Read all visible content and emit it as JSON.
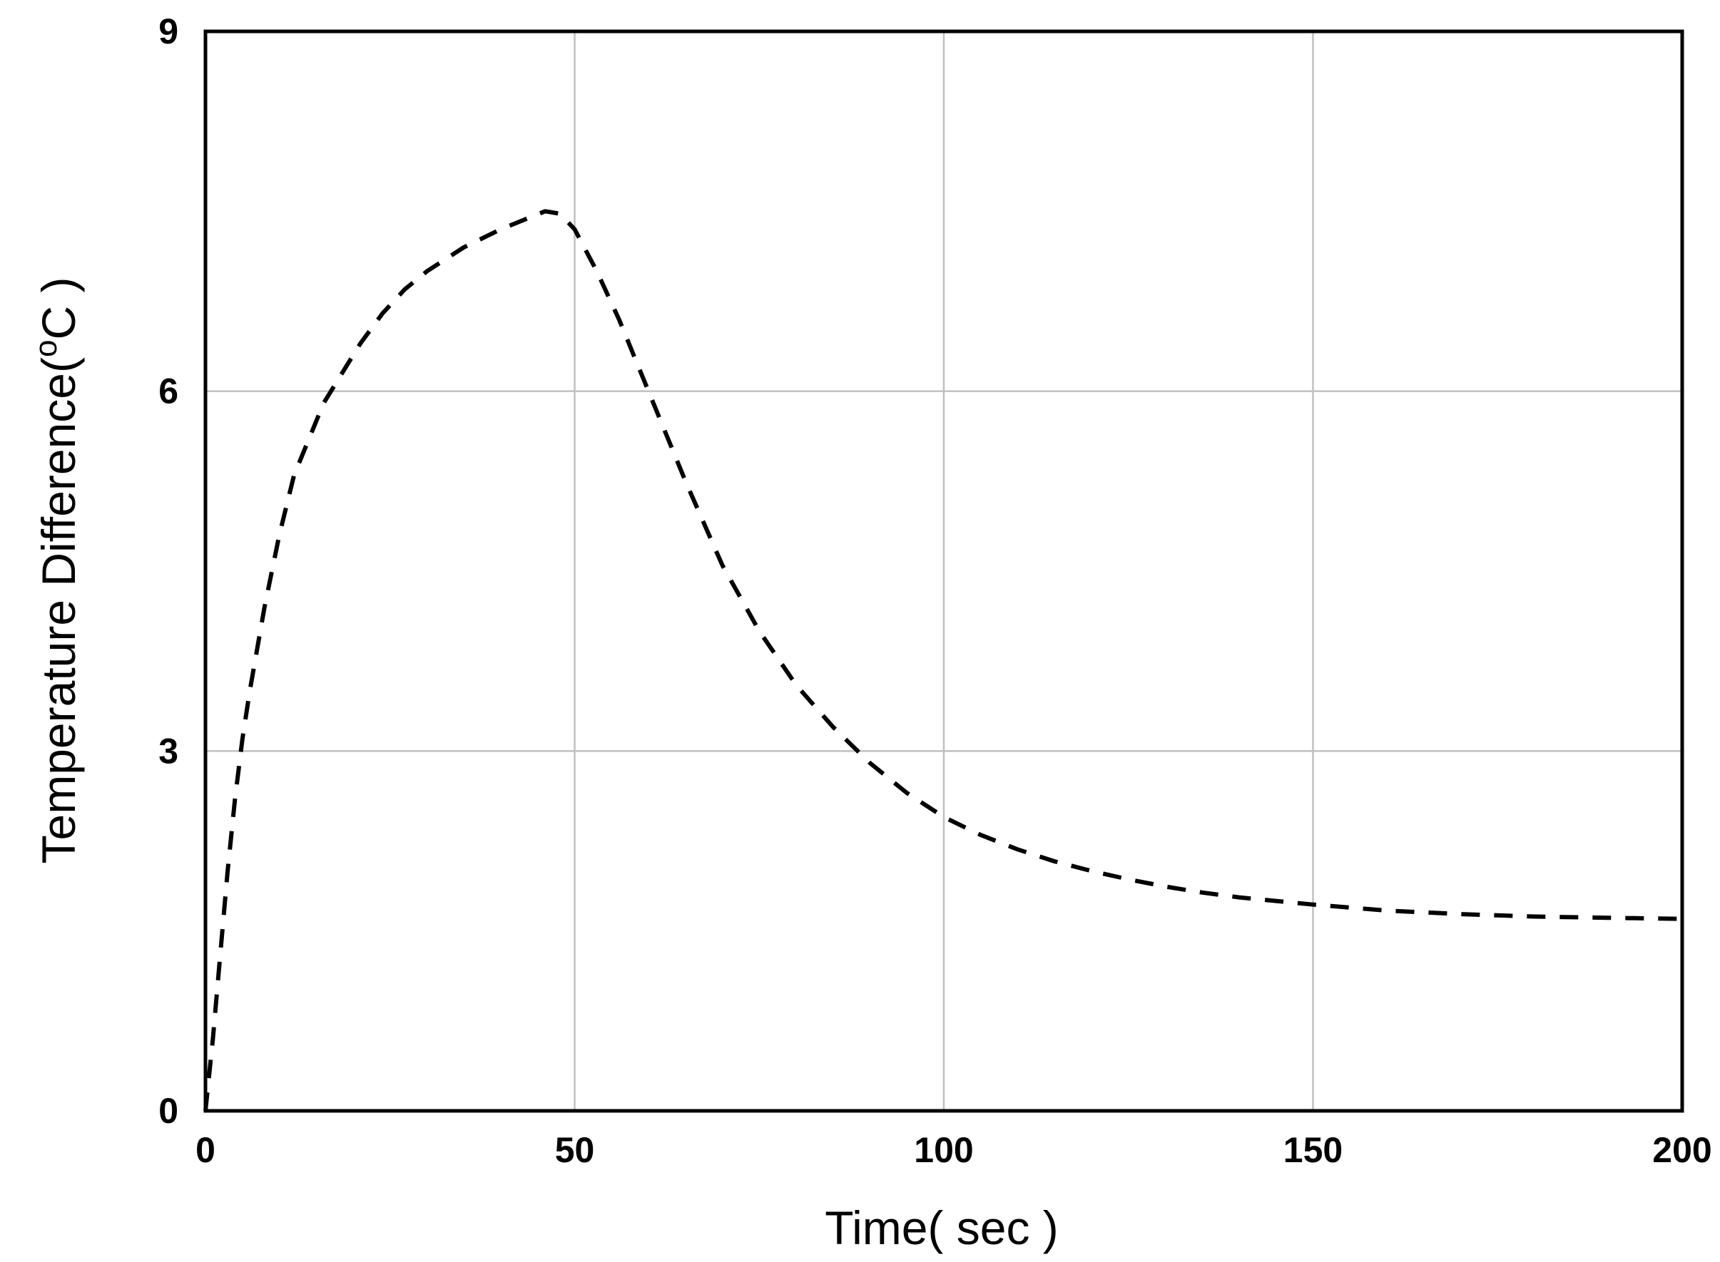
{
  "chart_data": {
    "type": "line",
    "title": "",
    "xlabel": "Time( sec )",
    "ylabel": {
      "before": "Temperature Difference(",
      "superscript": "o",
      "after": "C )"
    },
    "xlim": [
      0,
      200
    ],
    "ylim": [
      0,
      9
    ],
    "xticks": [
      0,
      50,
      100,
      150,
      200
    ],
    "yticks": [
      0,
      3,
      6,
      9
    ],
    "xtick_labels": [
      "0",
      "50",
      "100",
      "150",
      "200"
    ],
    "ytick_labels": [
      "0",
      "3",
      "6",
      "9"
    ],
    "grid": true,
    "legend": "none",
    "colors": {
      "line": "#000000",
      "grid": "#c0c0c0",
      "frame": "#000000"
    },
    "series": [
      {
        "line_style": "dashed",
        "x": [
          0,
          1,
          2,
          3,
          4,
          5,
          6,
          8,
          10,
          12,
          14,
          16,
          18,
          21,
          24,
          27,
          30,
          35,
          40,
          44,
          46,
          47,
          48,
          50,
          53,
          56,
          60,
          65,
          70,
          75,
          80,
          85,
          90,
          95,
          100,
          105,
          110,
          115,
          120,
          125,
          130,
          135,
          140,
          150,
          160,
          170,
          180,
          190,
          200
        ],
        "y": [
          0,
          0.6,
          1.3,
          2.0,
          2.6,
          3.1,
          3.5,
          4.2,
          4.8,
          5.3,
          5.6,
          5.9,
          6.1,
          6.4,
          6.65,
          6.85,
          7.0,
          7.2,
          7.35,
          7.45,
          7.5,
          7.49,
          7.48,
          7.35,
          7.0,
          6.6,
          6.0,
          5.25,
          4.55,
          4.0,
          3.55,
          3.2,
          2.9,
          2.65,
          2.45,
          2.3,
          2.18,
          2.08,
          2.0,
          1.93,
          1.87,
          1.82,
          1.78,
          1.72,
          1.67,
          1.64,
          1.62,
          1.61,
          1.6
        ]
      }
    ]
  }
}
